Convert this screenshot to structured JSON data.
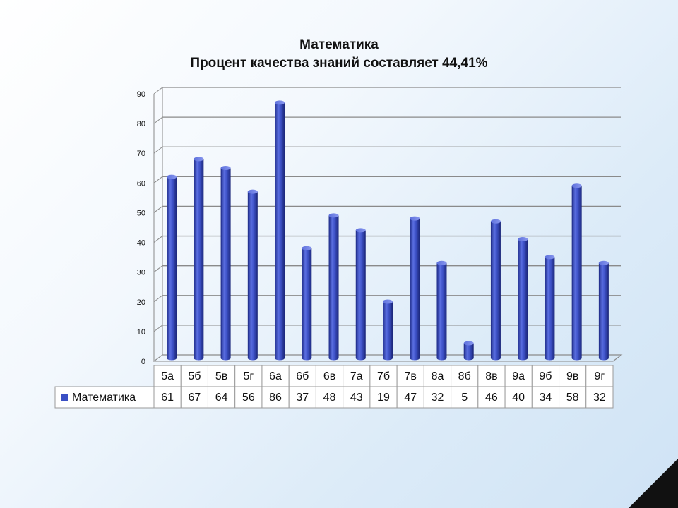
{
  "chart_data": {
    "type": "bar",
    "title": "Математика",
    "subtitle": "Процент качества знаний составляет 44,41%",
    "categories": [
      "5а",
      "5б",
      "5в",
      "5г",
      "6а",
      "6б",
      "6в",
      "7а",
      "7б",
      "7в",
      "8а",
      "8б",
      "8в",
      "9а",
      "9б",
      "9в",
      "9г"
    ],
    "series": [
      {
        "name": "Математика",
        "values": [
          61,
          67,
          64,
          56,
          86,
          37,
          48,
          43,
          19,
          47,
          32,
          5,
          46,
          40,
          34,
          58,
          32
        ],
        "color": "#3a4fc4"
      }
    ],
    "ylim": [
      0,
      90
    ],
    "yticks": [
      "0",
      "10",
      "20",
      "30",
      "40",
      "50",
      "60",
      "70",
      "80",
      "90"
    ],
    "grid": true,
    "legend": "data-table-left",
    "style": "3d-cylinder"
  }
}
